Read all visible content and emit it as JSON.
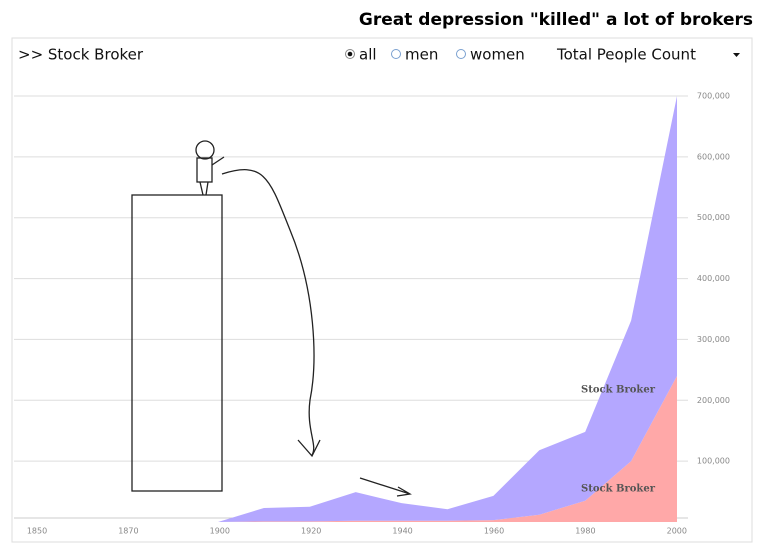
{
  "chart_data": {
    "type": "stacked_area",
    "title": "Great depression \"killed\" a lot of brokers",
    "heading": ">> Stock Broker",
    "filters": [
      "all",
      "men",
      "women"
    ],
    "measure": "Total People Count",
    "x": [
      1900,
      1910,
      1920,
      1930,
      1940,
      1950,
      1960,
      1970,
      1980,
      1990,
      2000
    ],
    "xlim": [
      1855,
      2003
    ],
    "x_axis_labels": [
      "1850",
      "1870",
      "1900",
      "1920",
      "1940",
      "1960",
      "1980",
      "2000"
    ],
    "series": [
      {
        "name": "Stock Broker",
        "color": "#ffa8a8",
        "values": [
          0,
          1000,
          1000,
          2000,
          2000,
          2000,
          3000,
          12000,
          35000,
          100000,
          240000
        ]
      },
      {
        "name": "Stock Broker",
        "color": "#b4a7ff",
        "values": [
          0,
          22000,
          24000,
          47000,
          29000,
          19000,
          40000,
          106000,
          113000,
          231000,
          460000
        ]
      }
    ],
    "ylim": [
      0,
      700000
    ],
    "yticks": [
      {
        "value": 100000,
        "label": "100,000"
      },
      {
        "value": 200000,
        "label": "200,000"
      },
      {
        "value": 300000,
        "label": "300,000"
      },
      {
        "value": 400000,
        "label": "400,000"
      },
      {
        "value": 500000,
        "label": "500,000"
      },
      {
        "value": 600000,
        "label": "600,000"
      },
      {
        "value": 700000,
        "label": "700,000"
      }
    ],
    "grid": true
  }
}
